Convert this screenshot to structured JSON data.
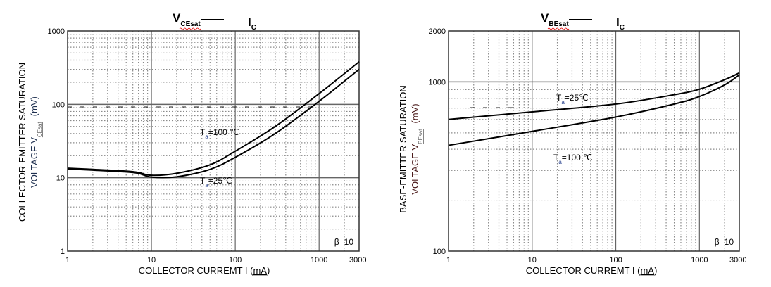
{
  "colors": {
    "curve": "#000000",
    "major_grid": "#666666",
    "minor_grid": "#8a8a8a",
    "ylabel_left": "#1f3050",
    "ylabel_right": "#4a1a1a",
    "spellcheck": "#e00000"
  },
  "chart_data": [
    {
      "type": "line",
      "title": {
        "main": "V",
        "main_sub": "CEsat",
        "dash": "—",
        "vs": "I",
        "vs_sub": "C"
      },
      "xlabel": {
        "text": "COLLECTOR CURREMT I",
        "unit_open": "(",
        "unit": "mA",
        "unit_close": ")"
      },
      "ylabel": {
        "line1": "COLLECTOR-EMITTER SATURATION",
        "line2_prefix": "VOLTAGE   V",
        "line2_sub": "CEsat",
        "unit": "(mV)"
      },
      "xscale": "log",
      "yscale": "log",
      "xlim": [
        1,
        3000
      ],
      "ylim": [
        1,
        1000
      ],
      "xticks": [
        {
          "v": 1,
          "label": "1"
        },
        {
          "v": 10,
          "label": "10"
        },
        {
          "v": 100,
          "label": "100"
        },
        {
          "v": 1000,
          "label": "1000"
        },
        {
          "v": 3000,
          "label": "3000"
        }
      ],
      "yticks": [
        {
          "v": 1,
          "label": "1"
        },
        {
          "v": 10,
          "label": "10"
        },
        {
          "v": 100,
          "label": "100"
        },
        {
          "v": 1000,
          "label": "1000"
        }
      ],
      "grid": true,
      "condition": "β=10",
      "series": [
        {
          "name": "Ta=100 ℃",
          "label_main": "T",
          "label_sub": "a",
          "label_rest": "=100 ℃",
          "x": [
            1,
            2,
            5,
            7,
            10,
            20,
            50,
            100,
            300,
            1000,
            3000
          ],
          "y": [
            13.5,
            13,
            12.3,
            11.8,
            10.8,
            11.5,
            15,
            23,
            50,
            140,
            380
          ]
        },
        {
          "name": "Ta=25℃",
          "label_main": "T",
          "label_sub": "a",
          "label_rest": "=25℃",
          "x": [
            1,
            2,
            5,
            7,
            10,
            20,
            50,
            100,
            300,
            1000,
            3000
          ],
          "y": [
            13.2,
            12.7,
            12,
            11.5,
            10.2,
            10.3,
            13,
            19,
            40,
            110,
            300
          ]
        }
      ]
    },
    {
      "type": "line",
      "title": {
        "main": "V",
        "main_sub": "BEsat",
        "dash": "—",
        "vs": "I",
        "vs_sub": "C"
      },
      "xlabel": {
        "text": "COLLECTOR CURREMT I",
        "unit_open": "(",
        "unit": "mA",
        "unit_close": ")"
      },
      "ylabel": {
        "line1": "BASE-EMITTER SATURATION",
        "line2_prefix": "VOLTAGE   V",
        "line2_sub": "BEsat",
        "unit": "(mV)"
      },
      "xscale": "log",
      "yscale": "log",
      "xlim": [
        1,
        3000
      ],
      "ylim": [
        100,
        2000
      ],
      "xticks": [
        {
          "v": 1,
          "label": "1"
        },
        {
          "v": 10,
          "label": "10"
        },
        {
          "v": 100,
          "label": "100"
        },
        {
          "v": 1000,
          "label": "1000"
        },
        {
          "v": 3000,
          "label": "3000"
        }
      ],
      "yticks": [
        {
          "v": 100,
          "label": "100"
        },
        {
          "v": 1000,
          "label": "1000"
        },
        {
          "v": 2000,
          "label": "2000"
        }
      ],
      "grid": true,
      "condition": "β=10",
      "series": [
        {
          "name": "Ta=25℃",
          "label_main": "T",
          "label_sub": "a",
          "label_rest": "=25℃",
          "x": [
            1,
            10,
            100,
            500,
            1000,
            2000,
            3000
          ],
          "y": [
            600,
            665,
            740,
            840,
            905,
            1030,
            1130
          ]
        },
        {
          "name": "Ta=100 ℃",
          "label_main": "T",
          "label_sub": "a",
          "label_rest": "=100 ℃",
          "x": [
            1,
            10,
            100,
            500,
            1000,
            2000,
            3000
          ],
          "y": [
            422,
            510,
            620,
            740,
            820,
            960,
            1100
          ]
        }
      ]
    }
  ]
}
